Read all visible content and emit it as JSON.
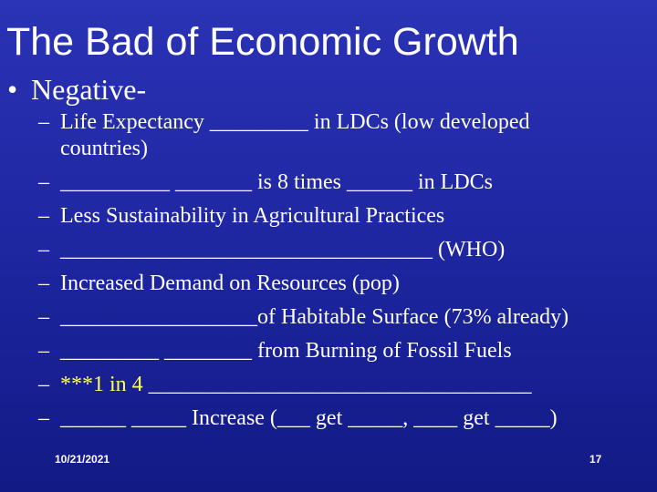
{
  "slide": {
    "title": "The Bad of Economic Growth",
    "bullet_marker": "•",
    "bullet": "Negative-",
    "dash": "–",
    "items": [
      {
        "line1": "Life Expectancy _________ in LDCs (low developed",
        "line2": "countries)"
      },
      {
        "text": "__________  _______ is 8 times ______ in LDCs"
      },
      {
        "text": "Less Sustainability in Agricultural Practices"
      },
      {
        "text": "__________________________________ (WHO)"
      },
      {
        "text": "Increased Demand on Resources (pop)"
      },
      {
        "text": "__________________of Habitable Surface (73% already)"
      },
      {
        "text": "_________ ________ from Burning of Fossil Fuels"
      },
      {
        "highlight": "***1 in 4",
        "rest": " ___________________________________"
      },
      {
        "text": "______  _____ Increase (___ get _____, ____ get _____)"
      }
    ],
    "footer_date": "10/21/2021",
    "page_number": "17",
    "colors": {
      "background": "#1f27a3",
      "text": "#ffffff",
      "highlight": "#ffff5a"
    }
  }
}
